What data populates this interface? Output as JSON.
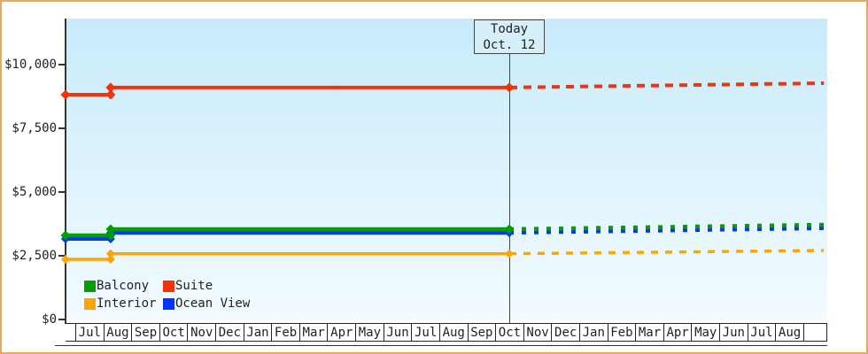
{
  "frame": {
    "border_color": "#E9A75C",
    "background": "#FFFFFF"
  },
  "chart_data": {
    "type": "line",
    "title": "",
    "description": "Cruise cabin price history by category; solid lines are past prices, dashed lines are projected future prices",
    "currency": "USD",
    "plot_background": {
      "top": "#C7EBFA",
      "bottom": "#F3FBFF"
    },
    "y_axis": {
      "min_value": 0,
      "max_value": 11800,
      "ticks": [
        {
          "label": "$10,000",
          "value": 10000
        },
        {
          "label": "$7,500",
          "value": 7500
        },
        {
          "label": "$5,000",
          "value": 5000
        },
        {
          "label": "$2,500",
          "value": 2500
        },
        {
          "label": "$0",
          "value": 0
        }
      ]
    },
    "x_axis": {
      "month_labels": [
        "Jul",
        "Aug",
        "Sep",
        "Oct",
        "Nov",
        "Dec",
        "Jan",
        "Feb",
        "Mar",
        "Apr",
        "May",
        "Jun",
        "Jul",
        "Aug",
        "Sep",
        "Oct",
        "Nov",
        "Dec",
        "Jan",
        "Feb",
        "Mar",
        "Apr",
        "May",
        "Jun",
        "Jul",
        "Aug"
      ]
    },
    "today": {
      "line1": "Today",
      "line2": "Oct. 12",
      "month_index": 15.48
    },
    "series": [
      {
        "name": "Balcony",
        "color": "#00A000",
        "z": 2,
        "width": 4.5,
        "marker": "diamond",
        "marker_r": 5.5,
        "proj_dash": "5,9",
        "points": [
          {
            "m": -0.35,
            "value": 3300
          },
          {
            "m": 1.26,
            "value": 3300
          },
          {
            "m": 1.26,
            "value": 3540
          },
          {
            "m": 15.48,
            "value": 3540
          }
        ],
        "projection_end": {
          "m": 26.7,
          "value": 3715
        }
      },
      {
        "name": "Suite",
        "color": "#F23305",
        "z": 1,
        "width": 4,
        "marker": "diamond",
        "marker_r": 5.5,
        "proj_dash": "9,7",
        "points": [
          {
            "m": -0.35,
            "value": 8820
          },
          {
            "m": 1.26,
            "value": 8820
          },
          {
            "m": 1.26,
            "value": 9100
          },
          {
            "m": 15.48,
            "value": 9100
          }
        ],
        "projection_end": {
          "m": 26.7,
          "value": 9270
        }
      },
      {
        "name": "Interior",
        "color": "#FFA500",
        "z": 1,
        "width": 3.5,
        "marker": "diamond",
        "marker_r": 5,
        "proj_dash": "8,8",
        "points": [
          {
            "m": -0.35,
            "value": 2360
          },
          {
            "m": 1.26,
            "value": 2360
          },
          {
            "m": 1.26,
            "value": 2580
          },
          {
            "m": 15.48,
            "value": 2580
          }
        ],
        "projection_end": {
          "m": 26.7,
          "value": 2710
        }
      },
      {
        "name": "Ocean View",
        "color": "#0435FA",
        "z": 1,
        "width": 4,
        "marker": "diamond",
        "marker_r": 5,
        "proj_dash": "5,9",
        "points": [
          {
            "m": -0.35,
            "value": 3160
          },
          {
            "m": 1.26,
            "value": 3160
          },
          {
            "m": 1.26,
            "value": 3400
          },
          {
            "m": 15.48,
            "value": 3400
          }
        ],
        "projection_end": {
          "m": 26.7,
          "value": 3575
        }
      }
    ],
    "legend": {
      "order": [
        "Balcony",
        "Suite",
        "Interior",
        "Ocean View"
      ]
    }
  }
}
